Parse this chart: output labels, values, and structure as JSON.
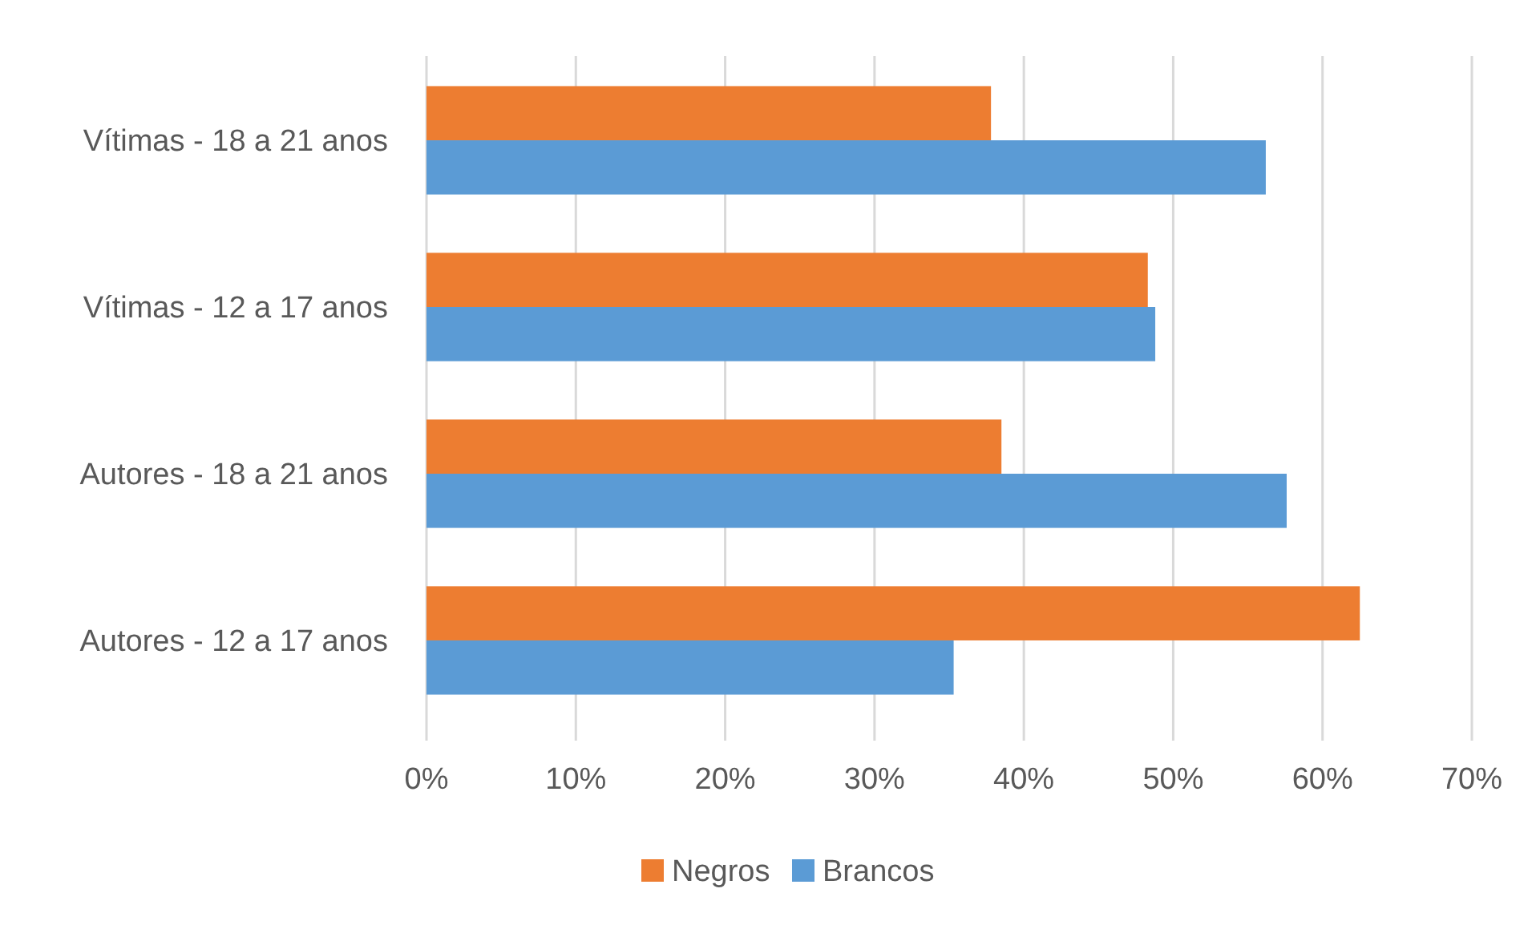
{
  "chart_data": {
    "type": "bar",
    "orientation": "horizontal",
    "categories": [
      "Vítimas - 18 a 21 anos",
      "Vítimas - 12 a 17 anos",
      "Autores - 18 a 21 anos",
      "Autores - 12 a 17 anos"
    ],
    "series": [
      {
        "name": "Negros",
        "color": "#ed7d31",
        "values": [
          37.8,
          48.3,
          38.5,
          62.5
        ]
      },
      {
        "name": "Brancos",
        "color": "#5b9bd5",
        "values": [
          56.2,
          48.8,
          57.6,
          35.3
        ]
      }
    ],
    "xlim": [
      0,
      70
    ],
    "xticks": [
      {
        "value": 0,
        "label": "0%"
      },
      {
        "value": 10,
        "label": "10%"
      },
      {
        "value": 20,
        "label": "20%"
      },
      {
        "value": 30,
        "label": "30%"
      },
      {
        "value": 40,
        "label": "40%"
      },
      {
        "value": 50,
        "label": "50%"
      },
      {
        "value": 60,
        "label": "60%"
      },
      {
        "value": 70,
        "label": "70%"
      }
    ],
    "grid": "x",
    "legend": "bottom"
  }
}
